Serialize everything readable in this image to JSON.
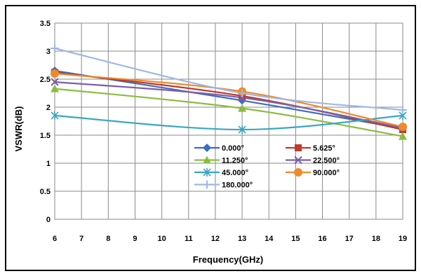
{
  "chart_data": {
    "type": "line",
    "xlabel": "Frequency(GHz)",
    "ylabel": "VSWR(dB)",
    "x": [
      6,
      13,
      19
    ],
    "xticks": [
      "6",
      "7",
      "8",
      "9",
      "10",
      "11",
      "12",
      "13",
      "14",
      "15",
      "16",
      "17",
      "18",
      "19"
    ],
    "ylim": [
      0,
      3.5
    ],
    "yticks": [
      "0",
      "0.5",
      "1",
      "1.5",
      "2",
      "2.5",
      "3",
      "3.5"
    ],
    "grid": true,
    "legend_position": "inside-lower-center",
    "series": [
      {
        "name": "0.000°",
        "color": "#3b6cc4",
        "marker": "diamond",
        "values": [
          2.65,
          2.12,
          1.62
        ]
      },
      {
        "name": "5.625°",
        "color": "#c0392b",
        "marker": "square",
        "values": [
          2.62,
          2.2,
          1.6
        ]
      },
      {
        "name": "11.250°",
        "color": "#8bbd3c",
        "marker": "triangle",
        "values": [
          2.33,
          1.98,
          1.48
        ]
      },
      {
        "name": "22.500°",
        "color": "#7a5fa8",
        "marker": "x",
        "values": [
          2.45,
          2.17,
          1.63
        ]
      },
      {
        "name": "45.000°",
        "color": "#3aa7c1",
        "marker": "star",
        "values": [
          1.85,
          1.6,
          1.85
        ]
      },
      {
        "name": "90.000°",
        "color": "#ee8a2a",
        "marker": "circle",
        "values": [
          2.6,
          2.28,
          1.65
        ]
      },
      {
        "name": "180.000°",
        "color": "#9fb7e6",
        "marker": "plus",
        "values": [
          3.05,
          2.25,
          1.95
        ]
      }
    ]
  }
}
